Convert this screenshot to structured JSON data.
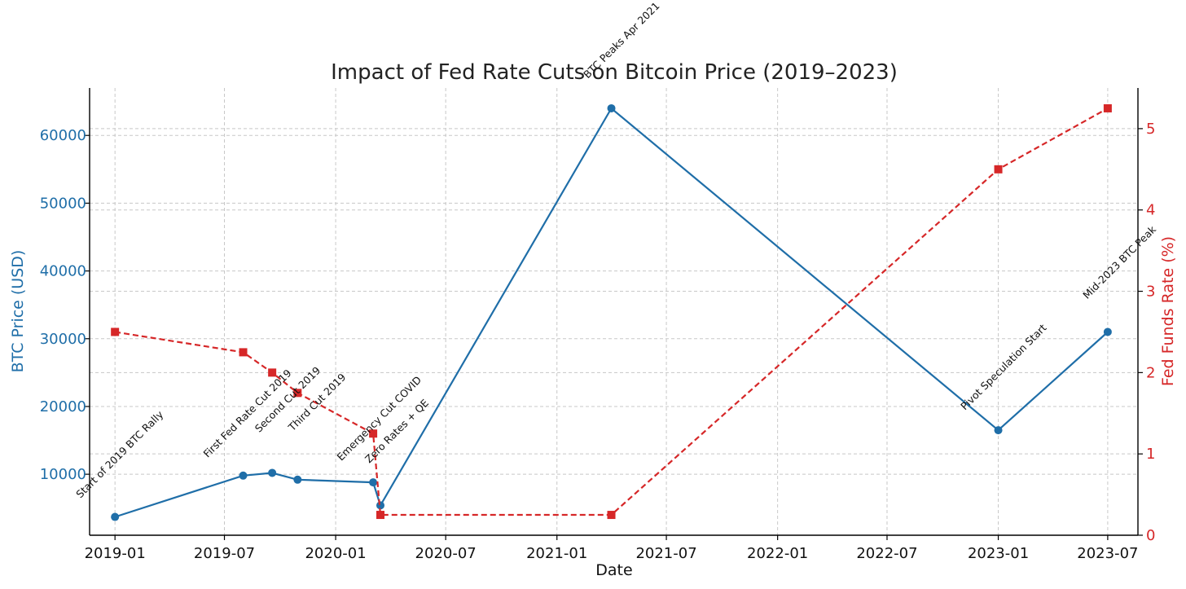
{
  "chart_data": {
    "type": "line",
    "title": "Impact of Fed Rate Cuts on Bitcoin Price (2019–2023)",
    "xlabel": "Date",
    "ylabel_left": "BTC Price (USD)",
    "ylabel_right": "Fed Funds Rate (%)",
    "x_ticks": [
      "2019-01",
      "2019-07",
      "2020-01",
      "2020-07",
      "2021-01",
      "2021-07",
      "2022-01",
      "2022-07",
      "2023-01",
      "2023-07"
    ],
    "y_left_ticks": [
      "10000",
      "20000",
      "30000",
      "40000",
      "50000",
      "60000"
    ],
    "y_right_ticks": [
      "0",
      "1",
      "2",
      "3",
      "4",
      "5"
    ],
    "xlim": [
      "2018-11-20",
      "2023-08-20"
    ],
    "ylim_left": [
      1000,
      67000
    ],
    "ylim_right": [
      0,
      5.5
    ],
    "grid": true,
    "colors": {
      "btc": "#1f6ea8",
      "rate": "#d62728"
    },
    "series": [
      {
        "axis": "left",
        "style": "solid-circle",
        "points": [
          {
            "date": "2019-01-01",
            "value": 3700
          },
          {
            "date": "2019-08-01",
            "value": 9800
          },
          {
            "date": "2019-09-18",
            "value": 10200
          },
          {
            "date": "2019-10-30",
            "value": 9200
          },
          {
            "date": "2020-03-03",
            "value": 8800
          },
          {
            "date": "2020-03-15",
            "value": 5400
          },
          {
            "date": "2021-04-01",
            "value": 64000
          },
          {
            "date": "2023-01-01",
            "value": 16500
          },
          {
            "date": "2023-07-01",
            "value": 31000
          }
        ]
      },
      {
        "axis": "right",
        "style": "dashed-square",
        "points": [
          {
            "date": "2019-01-01",
            "value": 2.5
          },
          {
            "date": "2019-08-01",
            "value": 2.25
          },
          {
            "date": "2019-09-18",
            "value": 2.0
          },
          {
            "date": "2019-10-30",
            "value": 1.75
          },
          {
            "date": "2020-03-03",
            "value": 1.25
          },
          {
            "date": "2020-03-15",
            "value": 0.25
          },
          {
            "date": "2021-04-01",
            "value": 0.25
          },
          {
            "date": "2023-01-01",
            "value": 4.5
          },
          {
            "date": "2023-07-01",
            "value": 5.25
          }
        ]
      }
    ],
    "annotations": [
      {
        "date": "2019-01-01",
        "value": 3700,
        "text": "Start of 2019 BTC Rally"
      },
      {
        "date": "2019-08-01",
        "value": 9800,
        "text": "First Fed Rate Cut 2019"
      },
      {
        "date": "2019-09-18",
        "value": 10200,
        "text": "Second Cut 2019"
      },
      {
        "date": "2019-10-30",
        "value": 9200,
        "text": "Third Cut 2019"
      },
      {
        "date": "2020-03-03",
        "value": 8800,
        "text": "Emergency Cut COVID"
      },
      {
        "date": "2020-03-15",
        "value": 5400,
        "text": "Zero Rates + QE"
      },
      {
        "date": "2021-04-01",
        "value": 64000,
        "text": "BTC Peaks Apr 2021"
      },
      {
        "date": "2023-01-01",
        "value": 16500,
        "text": "Pivot Speculation Start"
      },
      {
        "date": "2023-07-01",
        "value": 31000,
        "text": "Mid-2023 BTC Peak"
      }
    ]
  }
}
